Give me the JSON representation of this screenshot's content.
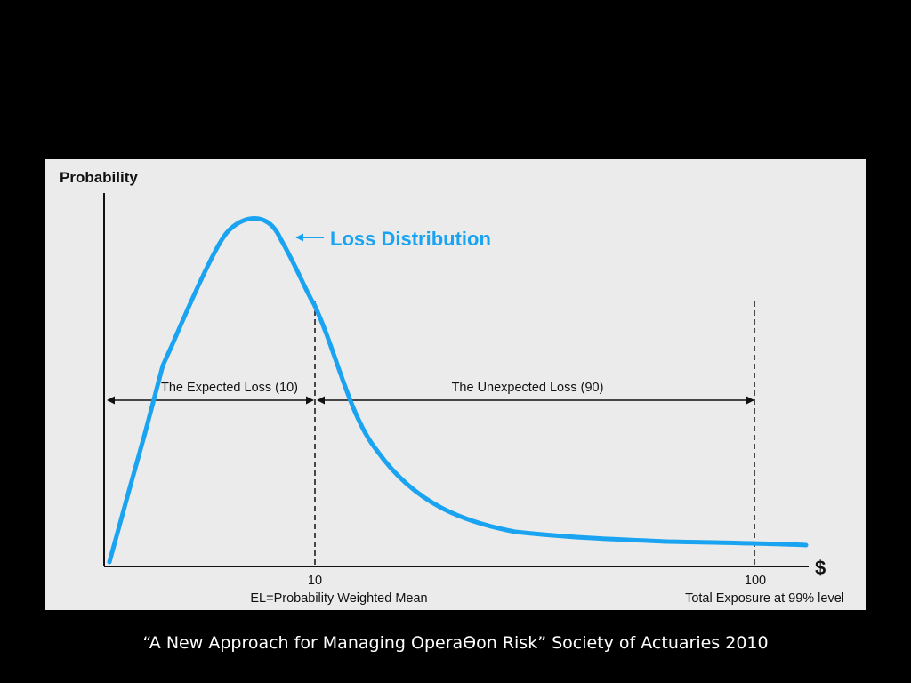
{
  "diagram": {
    "y_axis_label": "Probability",
    "x_axis_symbol": "$",
    "curve_label": "Loss Distribution",
    "tick_10": "10",
    "tick_100": "100",
    "el_label": "EL=Probability Weighted Mean",
    "exposure_label": "Total Exposure at 99% level",
    "expected_loss_label": "The Expected Loss (10)",
    "unexpected_loss_label": "The Unexpected Loss (90)"
  },
  "caption": "“A New Approach for Managing OperaƟon Risk” Society of Actuaries 2010",
  "colors": {
    "curve": "#1aa3f0",
    "axis": "#111111",
    "figure_background": "#ebebeb",
    "page_background": "#000000",
    "caption": "#ffffff"
  }
}
